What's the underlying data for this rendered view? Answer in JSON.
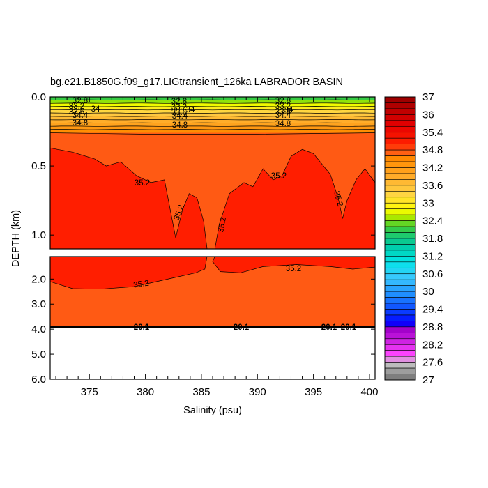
{
  "chart_data": {
    "type": "contour",
    "title": "bg.e21.B1850G.f09_g17.LIGtransient_126ka LABRADOR BASIN",
    "xlabel": "Salinity (psu)",
    "ylabel": "DEPTH (km)",
    "xlim": [
      371.5,
      400.5
    ],
    "x_ticks": [
      375,
      380,
      385,
      390,
      395,
      400
    ],
    "x_tick_labels": [
      "375",
      "380",
      "385",
      "390",
      "395",
      "400"
    ],
    "upper_panel": {
      "ylim": [
        0.0,
        1.1
      ],
      "y_ticks": [
        0.0,
        0.5,
        1.0
      ],
      "y_tick_labels": [
        "0.0",
        "0.5",
        "1.0"
      ]
    },
    "lower_panel": {
      "ylim": [
        1.1,
        6.0
      ],
      "y_ticks": [
        2.0,
        3.0,
        4.0,
        5.0,
        6.0
      ],
      "y_tick_labels": [
        "2.0",
        "3.0",
        "4.0",
        "5.0",
        "6.0"
      ],
      "ocean_bottom_depth": 3.9
    },
    "colorbar": {
      "min": 27,
      "max": 37,
      "labels": [
        "37",
        "36",
        "35.4",
        "34.8",
        "34.2",
        "33.6",
        "33",
        "32.4",
        "31.8",
        "31.2",
        "30.6",
        "30",
        "29.4",
        "28.8",
        "28.2",
        "27.6",
        "27"
      ]
    },
    "series": [
      {
        "name": "35.2",
        "upper_boundary": [
          {
            "x": 371.5,
            "y": 0.37
          },
          {
            "x": 373.5,
            "y": 0.4
          },
          {
            "x": 375.5,
            "y": 0.45
          },
          {
            "x": 376.5,
            "y": 0.5
          },
          {
            "x": 377.8,
            "y": 0.47
          },
          {
            "x": 379.2,
            "y": 0.57
          },
          {
            "x": 380.5,
            "y": 0.62
          },
          {
            "x": 381.7,
            "y": 0.6
          },
          {
            "x": 382.3,
            "y": 0.85
          },
          {
            "x": 382.7,
            "y": 1.02
          },
          {
            "x": 383.3,
            "y": 0.82
          },
          {
            "x": 383.9,
            "y": 0.7
          },
          {
            "x": 384.6,
            "y": 0.73
          },
          {
            "x": 385.2,
            "y": 0.9
          },
          {
            "x": 385.5,
            "y": 1.1
          },
          {
            "x": 386.2,
            "y": 1.1
          },
          {
            "x": 386.6,
            "y": 0.92
          },
          {
            "x": 387.5,
            "y": 0.7
          },
          {
            "x": 388.8,
            "y": 0.62
          },
          {
            "x": 389.6,
            "y": 0.65
          },
          {
            "x": 390.5,
            "y": 0.52
          },
          {
            "x": 391.4,
            "y": 0.6
          },
          {
            "x": 392.2,
            "y": 0.57
          },
          {
            "x": 393.0,
            "y": 0.43
          },
          {
            "x": 394.0,
            "y": 0.38
          },
          {
            "x": 395.0,
            "y": 0.41
          },
          {
            "x": 396.5,
            "y": 0.56
          },
          {
            "x": 397.2,
            "y": 0.73
          },
          {
            "x": 397.6,
            "y": 0.88
          },
          {
            "x": 398.0,
            "y": 0.75
          },
          {
            "x": 398.8,
            "y": 0.6
          },
          {
            "x": 399.6,
            "y": 0.52
          },
          {
            "x": 400.5,
            "y": 0.62
          }
        ],
        "lower_boundary": [
          {
            "x": 371.5,
            "y": 2.1
          },
          {
            "x": 373.5,
            "y": 2.38
          },
          {
            "x": 376.0,
            "y": 2.4
          },
          {
            "x": 379.0,
            "y": 2.3
          },
          {
            "x": 382.5,
            "y": 1.95
          },
          {
            "x": 384.5,
            "y": 1.75
          },
          {
            "x": 385.3,
            "y": 1.6
          },
          {
            "x": 385.5,
            "y": 1.1
          },
          {
            "x": 386.2,
            "y": 1.1
          },
          {
            "x": 386.0,
            "y": 1.3
          },
          {
            "x": 386.7,
            "y": 1.7
          },
          {
            "x": 388.5,
            "y": 1.75
          },
          {
            "x": 390.5,
            "y": 1.5
          },
          {
            "x": 393.5,
            "y": 1.42
          },
          {
            "x": 396.5,
            "y": 1.5
          },
          {
            "x": 398.5,
            "y": 1.6
          },
          {
            "x": 400.5,
            "y": 1.52
          }
        ]
      },
      {
        "name": "34.8",
        "upper_boundary": [
          {
            "x": 371.5,
            "y": 0.26
          },
          {
            "x": 380,
            "y": 0.27
          },
          {
            "x": 390,
            "y": 0.27
          },
          {
            "x": 400.5,
            "y": 0.26
          }
        ]
      }
    ],
    "surface_contour_levels": [
      32.4,
      32.7,
      33.0,
      33.3,
      33.6,
      33.8,
      34.0,
      34.2,
      34.4,
      34.6,
      34.8
    ],
    "contour_labels": {
      "surface": [
        "32.8",
        "33.2",
        "33.6",
        "34",
        "34.4",
        "34.8"
      ],
      "upper_35_2": [
        "35.2",
        "35.2",
        "35.2",
        "35.2",
        "35.2"
      ],
      "lower_35_2": [
        "35.2",
        "35.2"
      ],
      "bottom": [
        "20.1",
        "20.1",
        "20.1",
        "20.1"
      ]
    }
  }
}
